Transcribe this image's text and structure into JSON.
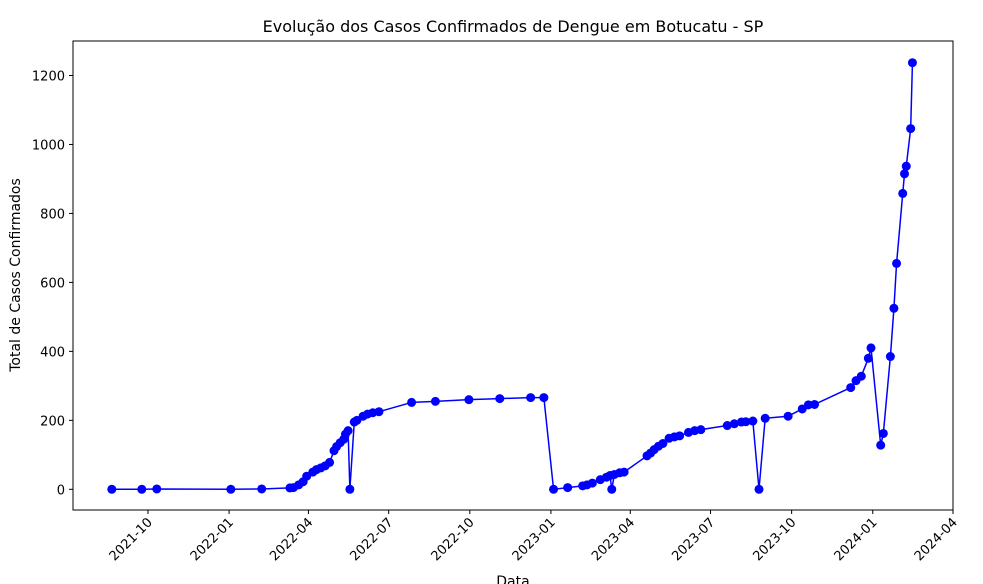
{
  "chart_data": {
    "type": "line",
    "title": "Evolução dos Casos Confirmados de Dengue em Botucatu - SP",
    "xlabel": "Data",
    "ylabel": "Total de Casos Confirmados",
    "xlim": [
      "2021-07-08",
      "2024-04-01"
    ],
    "ylim": [
      -60,
      1300
    ],
    "yticks": [
      0,
      200,
      400,
      600,
      800,
      1000,
      1200
    ],
    "xticks": [
      {
        "date": "2021-10-01",
        "label": "2021-10"
      },
      {
        "date": "2022-01-01",
        "label": "2022-01"
      },
      {
        "date": "2022-04-01",
        "label": "2022-04"
      },
      {
        "date": "2022-07-01",
        "label": "2022-07"
      },
      {
        "date": "2022-10-01",
        "label": "2022-10"
      },
      {
        "date": "2023-01-01",
        "label": "2023-01"
      },
      {
        "date": "2023-04-01",
        "label": "2023-04"
      },
      {
        "date": "2023-07-01",
        "label": "2023-07"
      },
      {
        "date": "2023-10-01",
        "label": "2023-10"
      },
      {
        "date": "2024-01-01",
        "label": "2024-01"
      },
      {
        "date": "2024-04-01",
        "label": "2024-04"
      }
    ],
    "grid": false,
    "marker": "circle",
    "colors": {
      "series": "#0000ff",
      "axes": "#000000",
      "background": "#ffffff"
    },
    "series": [
      {
        "points": [
          [
            "2021-08-21",
            0
          ],
          [
            "2021-09-24",
            0
          ],
          [
            "2021-10-11",
            1
          ],
          [
            "2022-01-03",
            0
          ],
          [
            "2022-02-07",
            1
          ],
          [
            "2022-03-11",
            4
          ],
          [
            "2022-03-15",
            5
          ],
          [
            "2022-03-21",
            13
          ],
          [
            "2022-03-26",
            22
          ],
          [
            "2022-03-30",
            38
          ],
          [
            "2022-04-06",
            50
          ],
          [
            "2022-04-10",
            57
          ],
          [
            "2022-04-15",
            62
          ],
          [
            "2022-04-20",
            68
          ],
          [
            "2022-04-25",
            78
          ],
          [
            "2022-04-30",
            112
          ],
          [
            "2022-05-03",
            124
          ],
          [
            "2022-05-07",
            135
          ],
          [
            "2022-05-11",
            145
          ],
          [
            "2022-05-13",
            160
          ],
          [
            "2022-05-16",
            170
          ],
          [
            "2022-05-18",
            0
          ],
          [
            "2022-05-23",
            195
          ],
          [
            "2022-05-26",
            200
          ],
          [
            "2022-06-02",
            212
          ],
          [
            "2022-06-07",
            218
          ],
          [
            "2022-06-13",
            222
          ],
          [
            "2022-06-20",
            225
          ],
          [
            "2022-07-27",
            252
          ],
          [
            "2022-08-23",
            255
          ],
          [
            "2022-09-30",
            260
          ],
          [
            "2022-11-04",
            263
          ],
          [
            "2022-12-09",
            266
          ],
          [
            "2022-12-24",
            266
          ],
          [
            "2023-01-04",
            0
          ],
          [
            "2023-01-20",
            5
          ],
          [
            "2023-02-06",
            10
          ],
          [
            "2023-02-11",
            13
          ],
          [
            "2023-02-17",
            18
          ],
          [
            "2023-02-26",
            28
          ],
          [
            "2023-03-05",
            35
          ],
          [
            "2023-03-09",
            40
          ],
          [
            "2023-03-11",
            0
          ],
          [
            "2023-03-14",
            43
          ],
          [
            "2023-03-20",
            48
          ],
          [
            "2023-03-25",
            50
          ],
          [
            "2023-04-20",
            97
          ],
          [
            "2023-04-24",
            105
          ],
          [
            "2023-04-28",
            115
          ],
          [
            "2023-05-03",
            125
          ],
          [
            "2023-05-08",
            133
          ],
          [
            "2023-05-15",
            148
          ],
          [
            "2023-05-21",
            152
          ],
          [
            "2023-05-27",
            155
          ],
          [
            "2023-06-06",
            165
          ],
          [
            "2023-06-13",
            170
          ],
          [
            "2023-06-20",
            173
          ],
          [
            "2023-07-20",
            185
          ],
          [
            "2023-07-28",
            190
          ],
          [
            "2023-08-05",
            195
          ],
          [
            "2023-08-10",
            196
          ],
          [
            "2023-08-18",
            198
          ],
          [
            "2023-08-25",
            0
          ],
          [
            "2023-09-01",
            206
          ],
          [
            "2023-09-27",
            212
          ],
          [
            "2023-10-13",
            233
          ],
          [
            "2023-10-20",
            245
          ],
          [
            "2023-10-27",
            246
          ],
          [
            "2023-12-07",
            295
          ],
          [
            "2023-12-13",
            315
          ],
          [
            "2023-12-19",
            328
          ],
          [
            "2023-12-27",
            380
          ],
          [
            "2023-12-30",
            410
          ],
          [
            "2024-01-10",
            128
          ],
          [
            "2024-01-13",
            162
          ],
          [
            "2024-01-21",
            385
          ],
          [
            "2024-01-25",
            525
          ],
          [
            "2024-01-28",
            655
          ],
          [
            "2024-02-04",
            858
          ],
          [
            "2024-02-06",
            915
          ],
          [
            "2024-02-08",
            937
          ],
          [
            "2024-02-13",
            1046
          ],
          [
            "2024-02-15",
            1237
          ]
        ]
      }
    ]
  }
}
